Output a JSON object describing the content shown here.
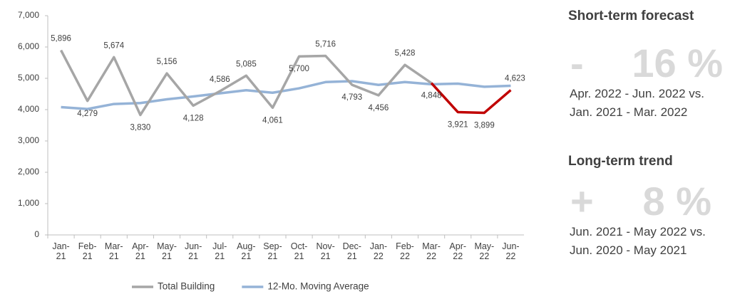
{
  "chart_data": {
    "type": "line",
    "categories": [
      "Jan-\n21",
      "Feb-\n21",
      "Mar-\n21",
      "Apr-\n21",
      "May-\n21",
      "Jun-\n21",
      "Jul-\n21",
      "Aug-\n21",
      "Sep-\n21",
      "Oct-\n21",
      "Nov-\n21",
      "Dec-\n21",
      "Jan-\n22",
      "Feb-\n22",
      "Mar-\n22",
      "Apr-\n22",
      "May-\n22",
      "Jun-\n22"
    ],
    "series": [
      {
        "name": "Total Building",
        "color": "#a6a6a6",
        "forecast_color": "#c00000",
        "forecast_start": "Mar-\n22",
        "values": [
          5896,
          4279,
          5674,
          3830,
          5156,
          4128,
          4586,
          5085,
          4061,
          5700,
          5716,
          4793,
          4456,
          5428,
          4848,
          3921,
          3899,
          4623
        ],
        "value_labels": [
          "5,896",
          "4,279",
          "5,674",
          "3,830",
          "5,156",
          "4,128",
          "4,586",
          "5,085",
          "4,061",
          "5,700",
          "5,716",
          "4,793",
          "4,456",
          "5,428",
          "4,848",
          "3,921",
          "3,899",
          "4,623"
        ]
      },
      {
        "name": "12-Mo. Moving Average",
        "color": "#95b3d7",
        "values": [
          4080,
          4020,
          4180,
          4210,
          4330,
          4420,
          4520,
          4620,
          4540,
          4680,
          4880,
          4910,
          4790,
          4880,
          4810,
          4830,
          4730,
          4760
        ]
      }
    ],
    "ylim": [
      0,
      7000
    ],
    "yticks": [
      0,
      {
        "value": 1000,
        "label": "1,000"
      },
      {
        "value": 2000,
        "label": "2,000"
      },
      {
        "value": 3000,
        "label": "3,000"
      },
      {
        "value": 4000,
        "label": "4,000"
      },
      {
        "value": 5000,
        "label": "5,000"
      },
      {
        "value": 6000,
        "label": "6,000"
      },
      {
        "value": 7000,
        "label": "7,000"
      }
    ],
    "legend": "bottom"
  },
  "panel": {
    "short": {
      "title": "Short-term forecast",
      "sign": "-",
      "value": "16 %",
      "line1": "Apr. 2022 - Jun. 2022 vs.",
      "line2": "Jan. 2021 - Mar. 2022"
    },
    "long": {
      "title": "Long-term trend",
      "sign": "+",
      "value": "8 %",
      "line1": "Jun. 2021 - May 2022 vs.",
      "line2": "Jun. 2020 - May 2021"
    }
  }
}
